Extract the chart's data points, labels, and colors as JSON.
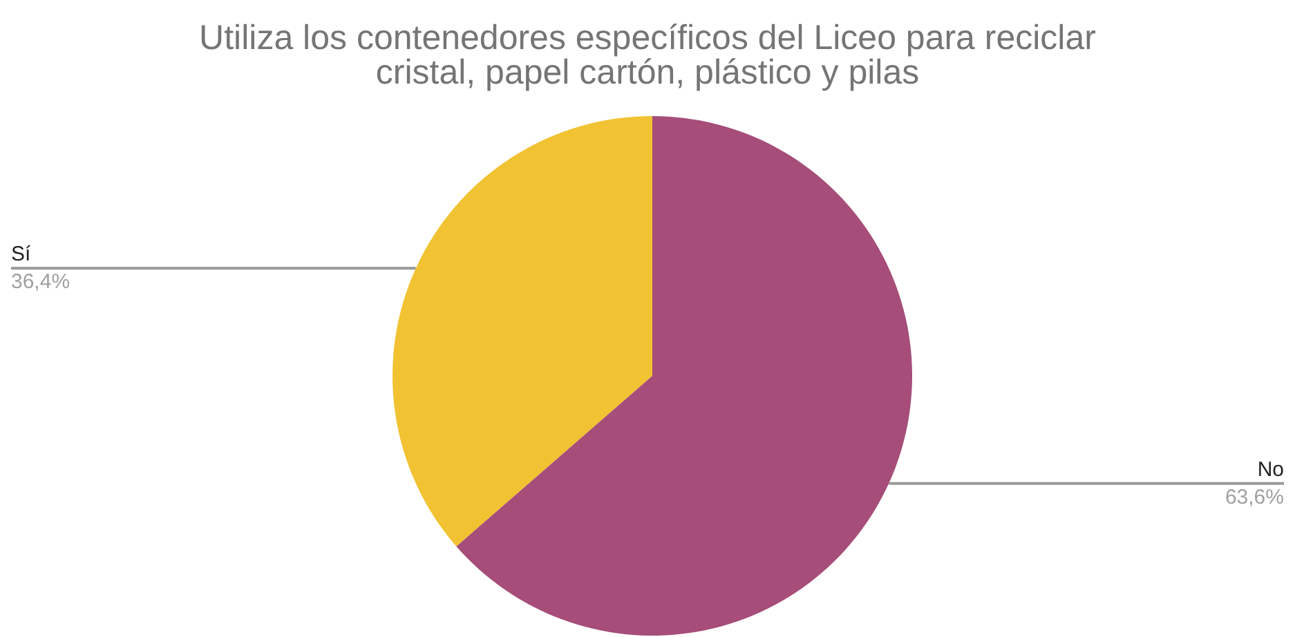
{
  "chart_data": {
    "type": "pie",
    "title": "Utiliza los contenedores específicos del Liceo para reciclar\ncristal, papel cartón, plástico y pilas",
    "categories": [
      "Sí",
      "No"
    ],
    "values": [
      36.4,
      63.6
    ],
    "colors": [
      "#f1c232",
      "#a64d79"
    ],
    "value_labels": [
      "36,4%",
      "63,6%"
    ]
  }
}
